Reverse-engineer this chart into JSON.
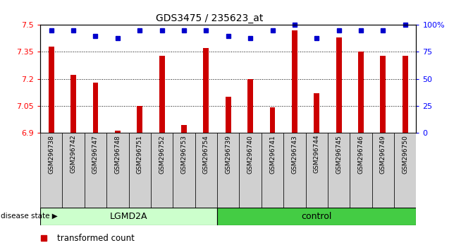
{
  "title": "GDS3475 / 235623_at",
  "samples": [
    "GSM296738",
    "GSM296742",
    "GSM296747",
    "GSM296748",
    "GSM296751",
    "GSM296752",
    "GSM296753",
    "GSM296754",
    "GSM296739",
    "GSM296740",
    "GSM296741",
    "GSM296743",
    "GSM296744",
    "GSM296745",
    "GSM296746",
    "GSM296749",
    "GSM296750"
  ],
  "transformed_counts": [
    7.38,
    7.22,
    7.18,
    6.91,
    7.05,
    7.33,
    6.94,
    7.37,
    7.1,
    7.2,
    7.04,
    7.47,
    7.12,
    7.43,
    7.35,
    7.33,
    7.33
  ],
  "percentile_values": [
    95,
    95,
    90,
    88,
    95,
    95,
    95,
    95,
    90,
    88,
    95,
    100,
    88,
    95,
    95,
    95,
    100
  ],
  "disease_groups": [
    {
      "label": "LGMD2A",
      "start": 0,
      "end": 8,
      "color": "#ccffcc"
    },
    {
      "label": "control",
      "start": 8,
      "end": 17,
      "color": "#44cc44"
    }
  ],
  "ymin": 6.9,
  "ymax": 7.5,
  "yticks": [
    6.9,
    7.05,
    7.2,
    7.35,
    7.5
  ],
  "bar_color": "#cc0000",
  "dot_color": "#0000cc",
  "right_yticks": [
    0,
    25,
    50,
    75,
    100
  ],
  "right_ytick_labels": [
    "0",
    "25",
    "50",
    "75",
    "100%"
  ]
}
